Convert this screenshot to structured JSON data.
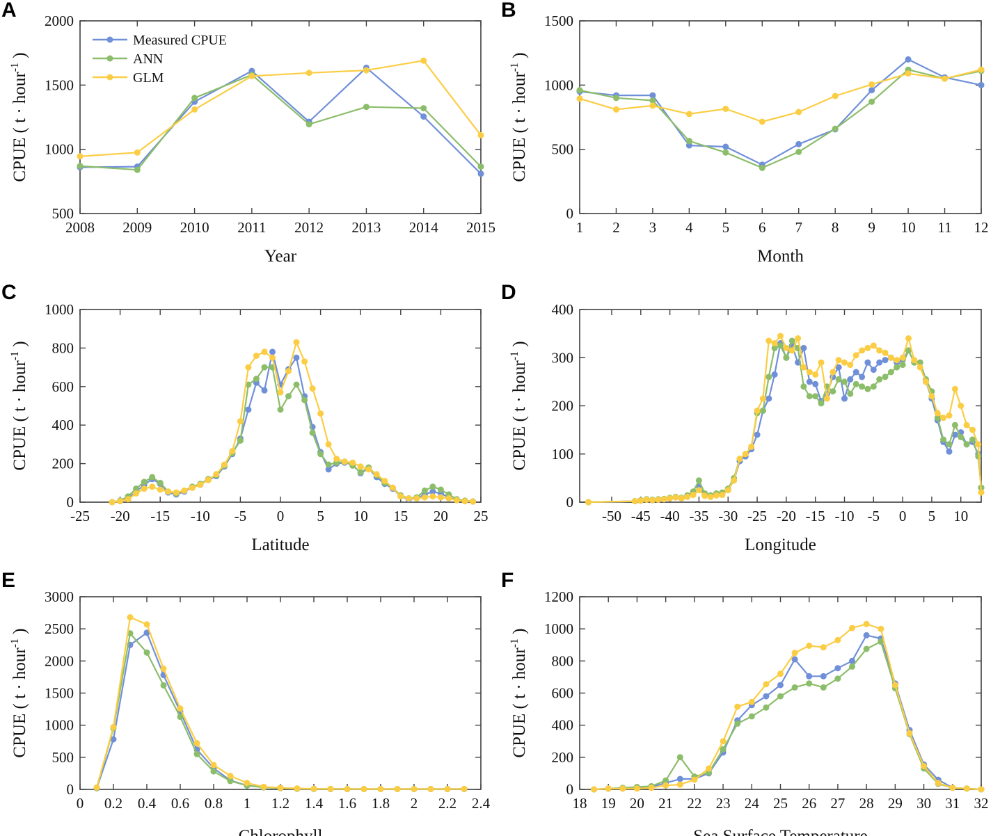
{
  "figure": {
    "panels": [
      "A",
      "B",
      "C",
      "D",
      "E",
      "F"
    ],
    "axis_color": "#3f3f3f",
    "text_color": "#111111",
    "background": "#ffffff",
    "legend_labels": [
      "Measured CPUE",
      "ANN",
      "GLM"
    ],
    "series_colors": {
      "measured": "#6F8FD8",
      "ann": "#8CBD6A",
      "glm": "#FBCD44"
    }
  },
  "chart_data": [
    {
      "panel": "A",
      "type": "line",
      "xlabel": "Year",
      "ylabel": "CPUE ( t · hour⁻¹ )",
      "xlim": [
        2008,
        2015
      ],
      "ylim": [
        500,
        2000
      ],
      "xticks": [
        2008,
        2009,
        2010,
        2011,
        2012,
        2013,
        2014,
        2015
      ],
      "xtick_labels": [
        "2008",
        "2009",
        "2010",
        "2011",
        "2012",
        "2013",
        "2014",
        "2015"
      ],
      "yticks": [
        500,
        1000,
        1500,
        2000
      ],
      "ytick_labels": [
        "500",
        "1000",
        "1500",
        "2000"
      ],
      "legend": true,
      "legend_position": "top-left",
      "grid": false,
      "x": [
        2008,
        2009,
        2010,
        2011,
        2012,
        2013,
        2014,
        2015
      ],
      "series": [
        {
          "name": "Measured CPUE",
          "color": "#6F8FD8",
          "values": [
            860,
            865,
            1370,
            1610,
            1215,
            1635,
            1255,
            810
          ]
        },
        {
          "name": "ANN",
          "color": "#8CBD6A",
          "values": [
            870,
            840,
            1400,
            1580,
            1195,
            1330,
            1320,
            865
          ]
        },
        {
          "name": "GLM",
          "color": "#FBCD44",
          "values": [
            945,
            975,
            1310,
            1570,
            1595,
            1615,
            1690,
            1110
          ]
        }
      ]
    },
    {
      "panel": "B",
      "type": "line",
      "xlabel": "Month",
      "ylabel": "CPUE ( t · hour⁻¹ )",
      "xlim": [
        1,
        12
      ],
      "ylim": [
        0,
        1500
      ],
      "xticks": [
        1,
        2,
        3,
        4,
        5,
        6,
        7,
        8,
        9,
        10,
        11,
        12
      ],
      "xtick_labels": [
        "1",
        "2",
        "3",
        "4",
        "5",
        "6",
        "7",
        "8",
        "9",
        "10",
        "11",
        "12"
      ],
      "yticks": [
        0,
        500,
        1000,
        1500
      ],
      "ytick_labels": [
        "0",
        "500",
        "1000",
        "1500"
      ],
      "legend": false,
      "grid": false,
      "x": [
        1,
        2,
        3,
        4,
        5,
        6,
        7,
        8,
        9,
        10,
        11,
        12
      ],
      "series": [
        {
          "name": "Measured CPUE",
          "color": "#6F8FD8",
          "values": [
            950,
            920,
            920,
            530,
            520,
            380,
            540,
            655,
            960,
            1200,
            1060,
            1000
          ]
        },
        {
          "name": "ANN",
          "color": "#8CBD6A",
          "values": [
            960,
            900,
            880,
            565,
            475,
            355,
            480,
            660,
            870,
            1120,
            1050,
            1110
          ]
        },
        {
          "name": "GLM",
          "color": "#FBCD44",
          "values": [
            895,
            810,
            840,
            775,
            815,
            715,
            790,
            915,
            1005,
            1090,
            1050,
            1120
          ]
        }
      ]
    },
    {
      "panel": "C",
      "type": "line",
      "xlabel": "Latitude",
      "ylabel": "CPUE ( t · hour⁻¹ )",
      "xlim": [
        -25,
        25
      ],
      "ylim": [
        0,
        1000
      ],
      "xticks": [
        -25,
        -20,
        -15,
        -10,
        -5,
        0,
        5,
        10,
        15,
        20,
        25
      ],
      "xtick_labels": [
        "-25",
        "-20",
        "-15",
        "-10",
        "-5",
        "0",
        "5",
        "10",
        "15",
        "20",
        "25"
      ],
      "yticks": [
        0,
        200,
        400,
        600,
        800,
        1000
      ],
      "ytick_labels": [
        "0",
        "200",
        "400",
        "600",
        "800",
        "1000"
      ],
      "legend": false,
      "grid": false,
      "x": [
        -21,
        -20,
        -19,
        -18,
        -17,
        -16,
        -15,
        -14,
        -13,
        -12,
        -11,
        -10,
        -9,
        -8,
        -7,
        -6,
        -5,
        -4,
        -3,
        -2,
        -1,
        0,
        1,
        2,
        3,
        4,
        5,
        6,
        7,
        8,
        9,
        10,
        11,
        12,
        13,
        14,
        15,
        16,
        17,
        18,
        19,
        20,
        21,
        22,
        23,
        24
      ],
      "series": [
        {
          "name": "Measured CPUE",
          "color": "#6F8FD8",
          "values": [
            0,
            5,
            20,
            55,
            90,
            120,
            95,
            50,
            40,
            55,
            75,
            90,
            115,
            135,
            185,
            250,
            330,
            480,
            620,
            580,
            780,
            610,
            690,
            750,
            550,
            390,
            260,
            170,
            200,
            205,
            195,
            150,
            175,
            130,
            95,
            70,
            30,
            15,
            20,
            40,
            55,
            45,
            25,
            10,
            5,
            3
          ]
        },
        {
          "name": "ANN",
          "color": "#8CBD6A",
          "values": [
            0,
            8,
            30,
            70,
            105,
            130,
            100,
            55,
            45,
            60,
            80,
            95,
            120,
            140,
            190,
            255,
            320,
            610,
            640,
            700,
            700,
            480,
            550,
            610,
            530,
            360,
            250,
            195,
            205,
            210,
            190,
            155,
            180,
            140,
            100,
            75,
            35,
            20,
            25,
            60,
            80,
            65,
            40,
            15,
            8,
            4
          ]
        },
        {
          "name": "GLM",
          "color": "#FBCD44",
          "values": [
            0,
            5,
            15,
            45,
            70,
            80,
            65,
            55,
            50,
            60,
            75,
            90,
            115,
            145,
            195,
            265,
            420,
            700,
            760,
            780,
            750,
            570,
            680,
            830,
            730,
            590,
            460,
            300,
            225,
            210,
            205,
            185,
            170,
            145,
            110,
            75,
            30,
            20,
            20,
            25,
            30,
            25,
            20,
            10,
            5,
            3
          ]
        }
      ]
    },
    {
      "panel": "D",
      "type": "line",
      "xlabel": "Longitude",
      "ylabel": "CPUE ( t · hour⁻¹ )",
      "xlim": [
        -55.5,
        13.5
      ],
      "ylim": [
        0,
        400
      ],
      "xticks": [
        -50,
        -45,
        -40,
        -35,
        -30,
        -25,
        -20,
        -15,
        -10,
        -5,
        0,
        5,
        10
      ],
      "xtick_labels": [
        "-50",
        "-45",
        "-40",
        "-35",
        "-30",
        "-25",
        "-20",
        "-15",
        "-10",
        "-5",
        "0",
        "5",
        "10"
      ],
      "yticks": [
        0,
        100,
        200,
        300,
        400
      ],
      "ytick_labels": [
        "0",
        "100",
        "200",
        "300",
        "400"
      ],
      "legend": false,
      "grid": false,
      "x": [
        -54,
        -46,
        -45,
        -44,
        -43,
        -42,
        -41,
        -40,
        -39,
        -38,
        -37,
        -36,
        -35,
        -34,
        -33,
        -32,
        -31,
        -30,
        -29,
        -28,
        -27,
        -26,
        -25,
        -24,
        -23,
        -22,
        -21,
        -20,
        -19,
        -18,
        -17,
        -16,
        -15,
        -14,
        -13,
        -12,
        -11,
        -10,
        -9,
        -8,
        -7,
        -6,
        -5,
        -4,
        -3,
        -2,
        -1,
        0,
        1,
        2,
        3,
        4,
        5,
        6,
        7,
        8,
        9,
        10,
        11,
        12,
        13,
        13.5
      ],
      "series": [
        {
          "name": "Measured CPUE",
          "color": "#6F8FD8",
          "values": [
            0,
            2,
            3,
            5,
            4,
            5,
            6,
            8,
            10,
            8,
            12,
            18,
            32,
            15,
            12,
            15,
            18,
            25,
            45,
            85,
            95,
            110,
            140,
            190,
            215,
            265,
            330,
            300,
            325,
            290,
            320,
            250,
            245,
            210,
            225,
            260,
            280,
            215,
            255,
            270,
            260,
            290,
            275,
            290,
            295,
            300,
            290,
            295,
            315,
            290,
            290,
            250,
            215,
            170,
            125,
            105,
            140,
            145,
            120,
            125,
            100,
            30
          ]
        },
        {
          "name": "ANN",
          "color": "#8CBD6A",
          "values": [
            0,
            2,
            4,
            6,
            5,
            6,
            7,
            9,
            11,
            9,
            14,
            22,
            45,
            18,
            14,
            18,
            20,
            28,
            50,
            90,
            100,
            115,
            185,
            190,
            260,
            320,
            325,
            300,
            335,
            320,
            240,
            220,
            220,
            205,
            240,
            230,
            255,
            250,
            225,
            245,
            240,
            235,
            240,
            255,
            260,
            270,
            280,
            285,
            315,
            290,
            290,
            255,
            230,
            175,
            130,
            120,
            160,
            135,
            120,
            130,
            95,
            30
          ]
        },
        {
          "name": "GLM",
          "color": "#FBCD44",
          "values": [
            0,
            2,
            3,
            5,
            4,
            5,
            6,
            8,
            10,
            8,
            11,
            15,
            25,
            13,
            11,
            14,
            15,
            25,
            45,
            90,
            100,
            115,
            190,
            215,
            335,
            330,
            345,
            320,
            315,
            340,
            280,
            270,
            265,
            290,
            215,
            270,
            295,
            290,
            285,
            305,
            315,
            320,
            325,
            315,
            310,
            300,
            295,
            300,
            340,
            295,
            280,
            250,
            220,
            185,
            175,
            180,
            235,
            200,
            160,
            150,
            120,
            20
          ]
        }
      ]
    },
    {
      "panel": "E",
      "type": "line",
      "xlabel": "Chlorophyll",
      "ylabel": "CPUE ( t · hour⁻¹ )",
      "xlim": [
        0,
        2.4
      ],
      "ylim": [
        0,
        3000
      ],
      "xticks": [
        0,
        0.2,
        0.4,
        0.6,
        0.8,
        1,
        1.2,
        1.4,
        1.6,
        1.8,
        2,
        2.2,
        2.4
      ],
      "xtick_labels": [
        "0",
        "0.2",
        "0.4",
        "0.6",
        "0.8",
        "1",
        "1.2",
        "1.4",
        "1.6",
        "1.8",
        "2",
        "2.2",
        "2.4"
      ],
      "yticks": [
        0,
        500,
        1000,
        1500,
        2000,
        2500,
        3000
      ],
      "ytick_labels": [
        "0",
        "500",
        "1000",
        "1500",
        "2000",
        "2500",
        "3000"
      ],
      "legend": false,
      "grid": false,
      "x": [
        0.1,
        0.2,
        0.3,
        0.4,
        0.5,
        0.6,
        0.7,
        0.8,
        0.9,
        1.0,
        1.1,
        1.2,
        1.3,
        1.4,
        1.5,
        1.6,
        1.7,
        1.8,
        1.9,
        2.0,
        2.1,
        2.2,
        2.3
      ],
      "series": [
        {
          "name": "Measured CPUE",
          "color": "#6F8FD8",
          "values": [
            20,
            780,
            2250,
            2440,
            1780,
            1210,
            620,
            330,
            140,
            60,
            35,
            25,
            12,
            8,
            6,
            5,
            5,
            5,
            5,
            5,
            5,
            5,
            5
          ]
        },
        {
          "name": "ANN",
          "color": "#8CBD6A",
          "values": [
            20,
            950,
            2430,
            2130,
            1620,
            1130,
            550,
            280,
            130,
            60,
            30,
            20,
            10,
            8,
            6,
            5,
            5,
            5,
            5,
            5,
            5,
            5,
            5
          ]
        },
        {
          "name": "GLM",
          "color": "#FBCD44",
          "values": [
            30,
            970,
            2680,
            2570,
            1880,
            1260,
            720,
            380,
            210,
            100,
            40,
            25,
            15,
            10,
            8,
            6,
            5,
            5,
            5,
            5,
            5,
            5,
            8
          ]
        }
      ]
    },
    {
      "panel": "F",
      "type": "line",
      "xlabel": "Sea Surface Temperature",
      "ylabel": "CPUE ( t · hour⁻¹ )",
      "xlim": [
        18,
        32
      ],
      "ylim": [
        0,
        1200
      ],
      "xticks": [
        18,
        19,
        20,
        21,
        22,
        23,
        24,
        25,
        26,
        27,
        28,
        29,
        30,
        31,
        32
      ],
      "xtick_labels": [
        "18",
        "19",
        "20",
        "21",
        "22",
        "23",
        "24",
        "25",
        "26",
        "27",
        "28",
        "29",
        "30",
        "31",
        "32"
      ],
      "yticks": [
        0,
        200,
        400,
        600,
        800,
        1000,
        1200
      ],
      "ytick_labels": [
        "0",
        "200",
        "400",
        "600",
        "800",
        "1000",
        "1200"
      ],
      "legend": false,
      "grid": false,
      "x": [
        18.5,
        19,
        19.5,
        20,
        20.5,
        21,
        21.5,
        22,
        22.5,
        23,
        23.5,
        24,
        24.5,
        25,
        25.5,
        26,
        26.5,
        27,
        27.5,
        28,
        28.5,
        29,
        29.5,
        30,
        30.5,
        31,
        31.5,
        32
      ],
      "series": [
        {
          "name": "Measured CPUE",
          "color": "#6F8FD8",
          "values": [
            0,
            5,
            5,
            10,
            15,
            40,
            65,
            65,
            100,
            230,
            430,
            525,
            580,
            650,
            810,
            705,
            705,
            755,
            800,
            960,
            940,
            660,
            370,
            155,
            60,
            10,
            5,
            0
          ]
        },
        {
          "name": "ANN",
          "color": "#8CBD6A",
          "values": [
            0,
            5,
            10,
            15,
            20,
            55,
            200,
            80,
            105,
            250,
            410,
            455,
            510,
            580,
            635,
            660,
            635,
            690,
            765,
            875,
            920,
            630,
            345,
            130,
            35,
            10,
            5,
            0
          ]
        },
        {
          "name": "GLM",
          "color": "#FBCD44",
          "values": [
            0,
            5,
            5,
            5,
            10,
            25,
            30,
            60,
            130,
            300,
            515,
            545,
            655,
            720,
            850,
            895,
            885,
            930,
            1005,
            1030,
            1000,
            650,
            350,
            145,
            40,
            10,
            5,
            0
          ]
        }
      ]
    }
  ]
}
